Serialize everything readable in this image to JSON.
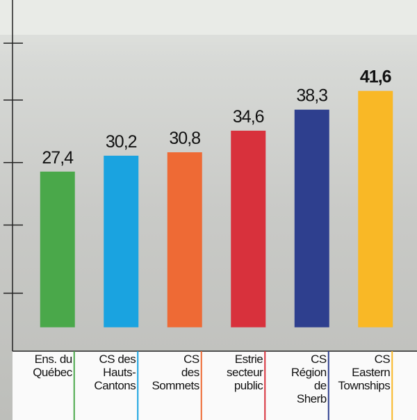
{
  "chart_data": {
    "type": "bar",
    "categories": [
      "Ens. du\nQuébec",
      "CS des\nHauts-\nCantons",
      "CS\ndes\nSommets",
      "Estrie\nsecteur\npublic",
      "CS\nRégion\nde\nSherb",
      "CS\nEastern\nTownships"
    ],
    "values": [
      27.4,
      30.2,
      30.8,
      34.6,
      38.3,
      41.6
    ],
    "value_labels": [
      "27,4",
      "30,2",
      "30,8",
      "34,6",
      "38,3",
      "41,6"
    ],
    "colors": [
      "#4aa84a",
      "#1aa3e0",
      "#ee6a35",
      "#d8313c",
      "#2e3f8e",
      "#f9b826"
    ],
    "ylim": [
      -4.2,
      57.6
    ],
    "yticks": [
      6,
      18,
      29,
      40,
      50
    ],
    "grid": false
  }
}
